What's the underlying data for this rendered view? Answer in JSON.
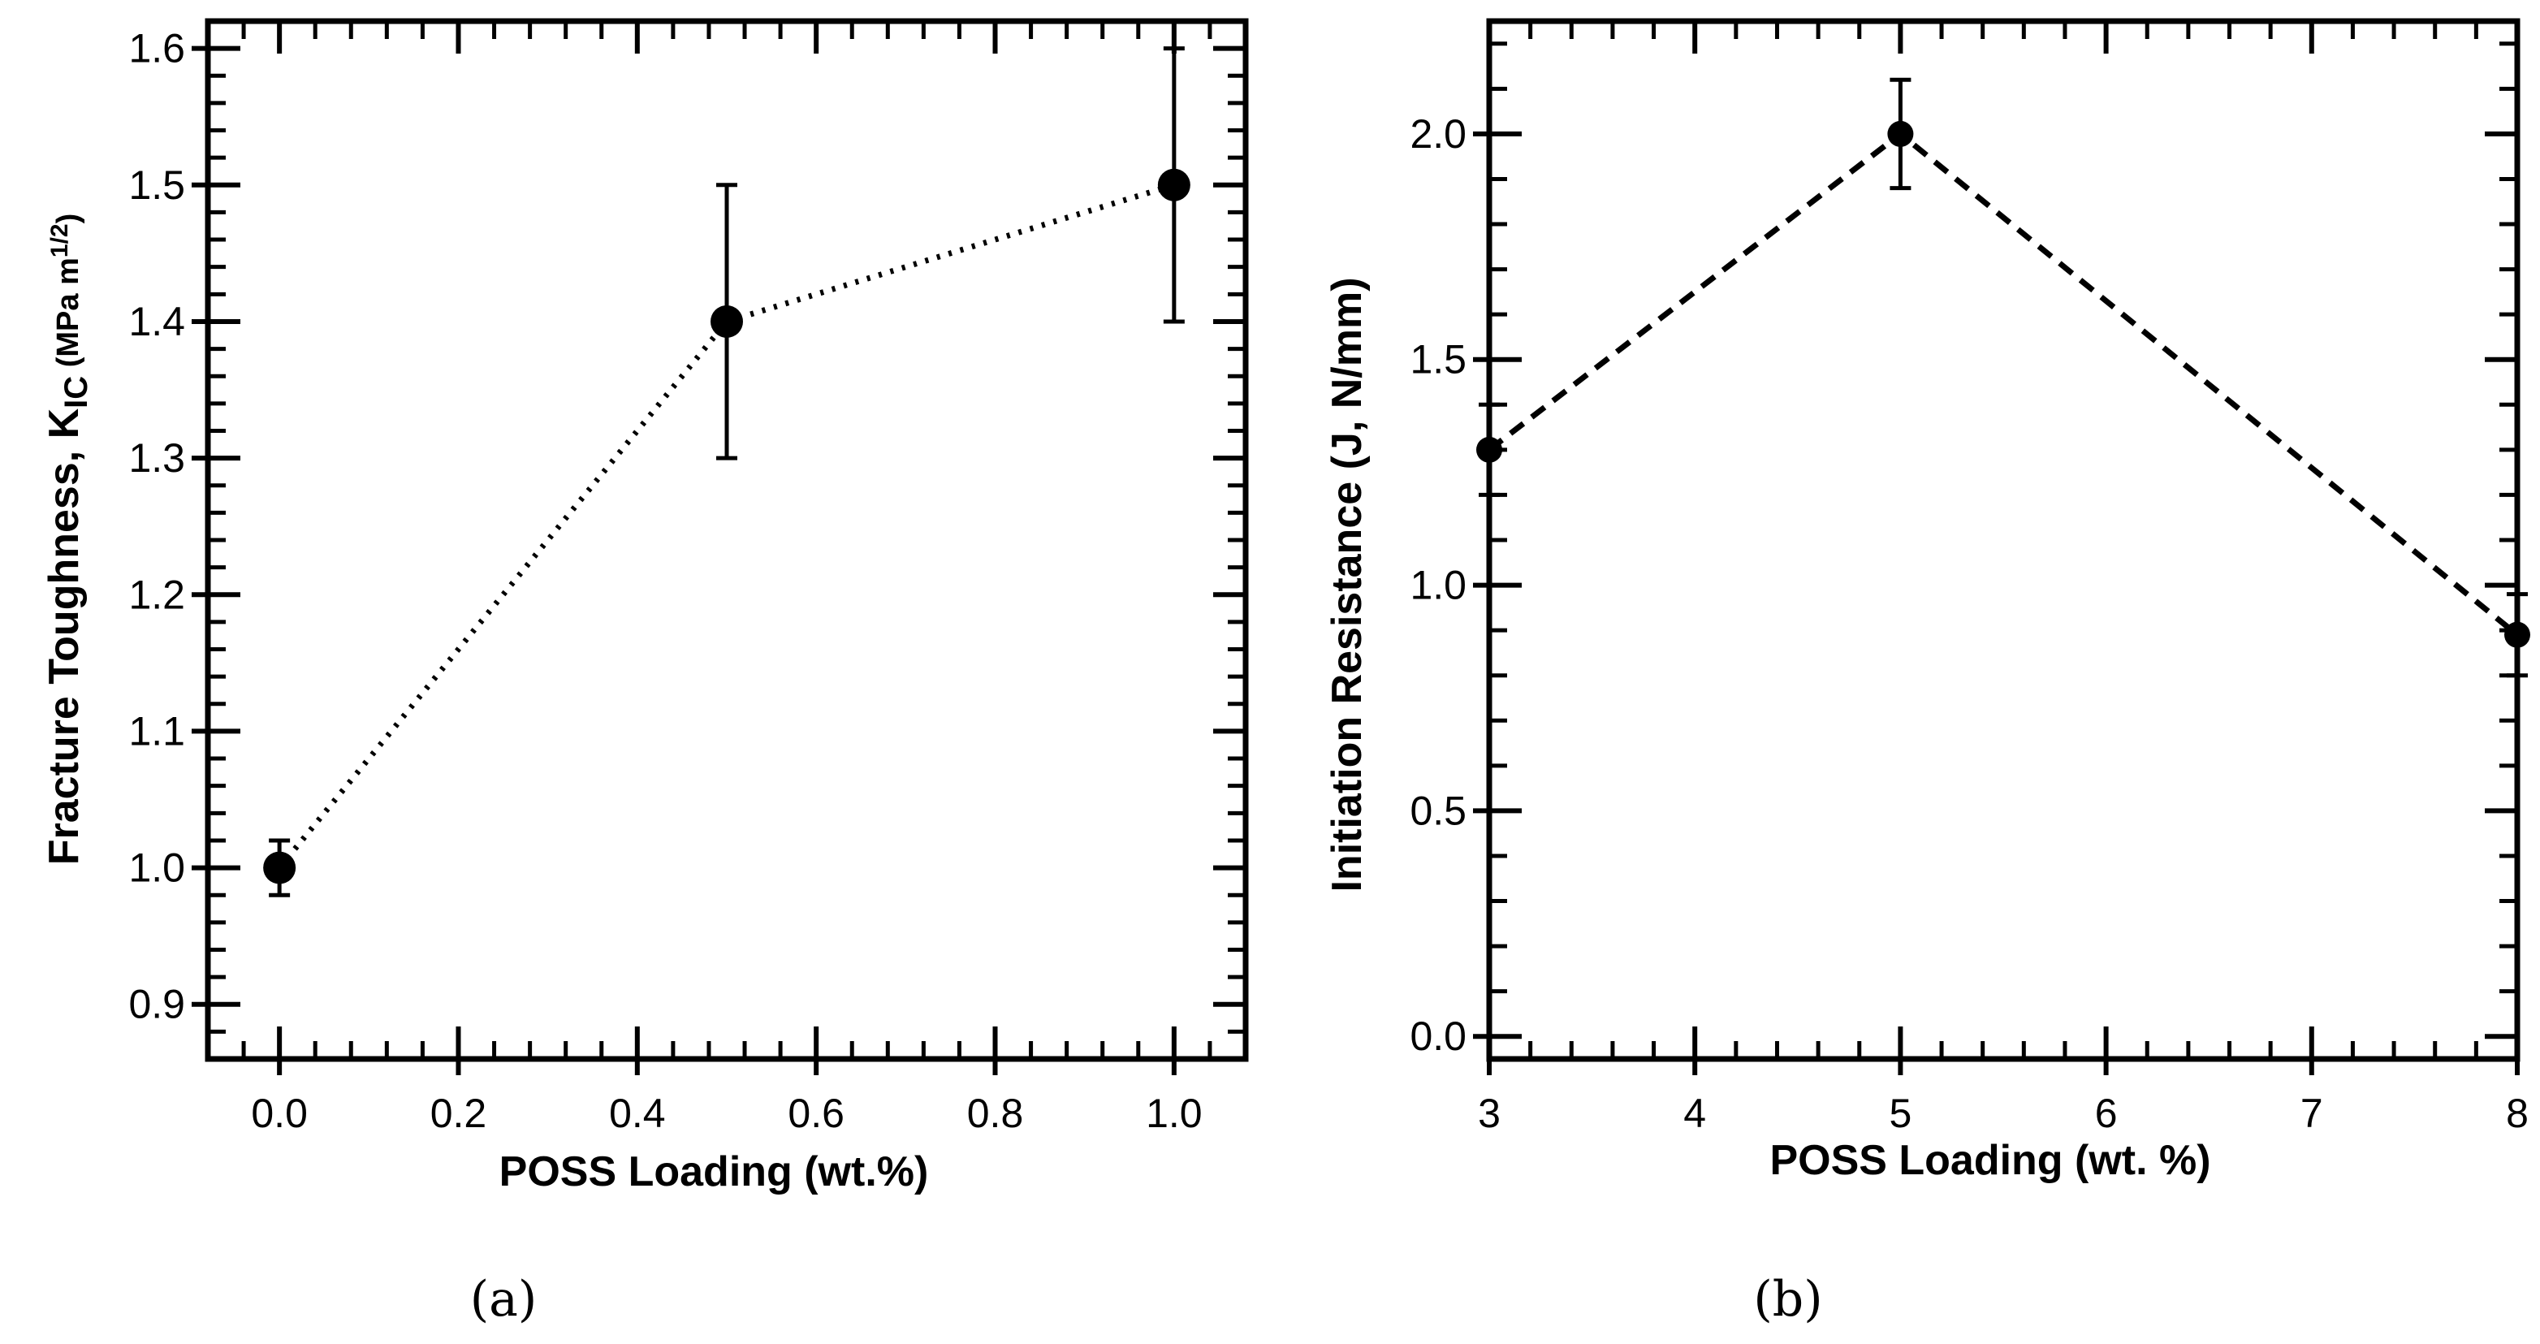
{
  "chart_data": [
    {
      "type": "line",
      "panel": "(a)",
      "xlabel": "POSS Loading (wt.%)",
      "ylabel_parts": {
        "main": "Fracture Toughness, K",
        "subscript": "IC",
        "units_open": " (MPa m",
        "units_super": "1/2",
        "units_close": ")"
      },
      "xlim": [
        -0.08,
        1.08
      ],
      "ylim": [
        0.86,
        1.62
      ],
      "xticks": [
        0.0,
        0.2,
        0.4,
        0.6,
        0.8,
        1.0
      ],
      "xtick_labels": [
        "0.0",
        "0.2",
        "0.4",
        "0.6",
        "0.8",
        "1.0"
      ],
      "yticks": [
        0.9,
        1.0,
        1.1,
        1.2,
        1.3,
        1.4,
        1.5,
        1.6
      ],
      "ytick_labels": [
        "0.9",
        "1.0",
        "1.1",
        "1.2",
        "1.3",
        "1.4",
        "1.5",
        "1.6"
      ],
      "x_minor_step": 0.04,
      "y_minor_step": 0.02,
      "line_style": "dotted",
      "series": [
        {
          "name": "Fracture Toughness",
          "x": [
            0.0,
            0.5,
            1.0
          ],
          "y": [
            1.0,
            1.4,
            1.5
          ],
          "err": [
            0.02,
            0.1,
            0.1
          ]
        }
      ]
    },
    {
      "type": "line",
      "panel": "(b)",
      "xlabel": "POSS Loading (wt. %)",
      "ylabel": "Initiation Resistance (J, N/mm)",
      "xlim": [
        3,
        8
      ],
      "ylim": [
        -0.05,
        2.25
      ],
      "xticks": [
        3,
        4,
        5,
        6,
        7,
        8
      ],
      "xtick_labels": [
        "3",
        "4",
        "5",
        "6",
        "7",
        "8"
      ],
      "yticks": [
        0.0,
        0.5,
        1.0,
        1.5,
        2.0
      ],
      "ytick_labels": [
        "0.0",
        "0.5",
        "1.0",
        "1.5",
        "2.0"
      ],
      "x_minor_step": 0.2,
      "y_minor_step": 0.1,
      "line_style": "dashed",
      "series": [
        {
          "name": "Initiation Resistance",
          "x": [
            3,
            5,
            8
          ],
          "y": [
            1.3,
            2.0,
            0.89
          ],
          "err": [
            0.1,
            0.12,
            0.09
          ]
        }
      ]
    }
  ],
  "colors": {
    "ink": "#000000",
    "background": "#ffffff"
  }
}
